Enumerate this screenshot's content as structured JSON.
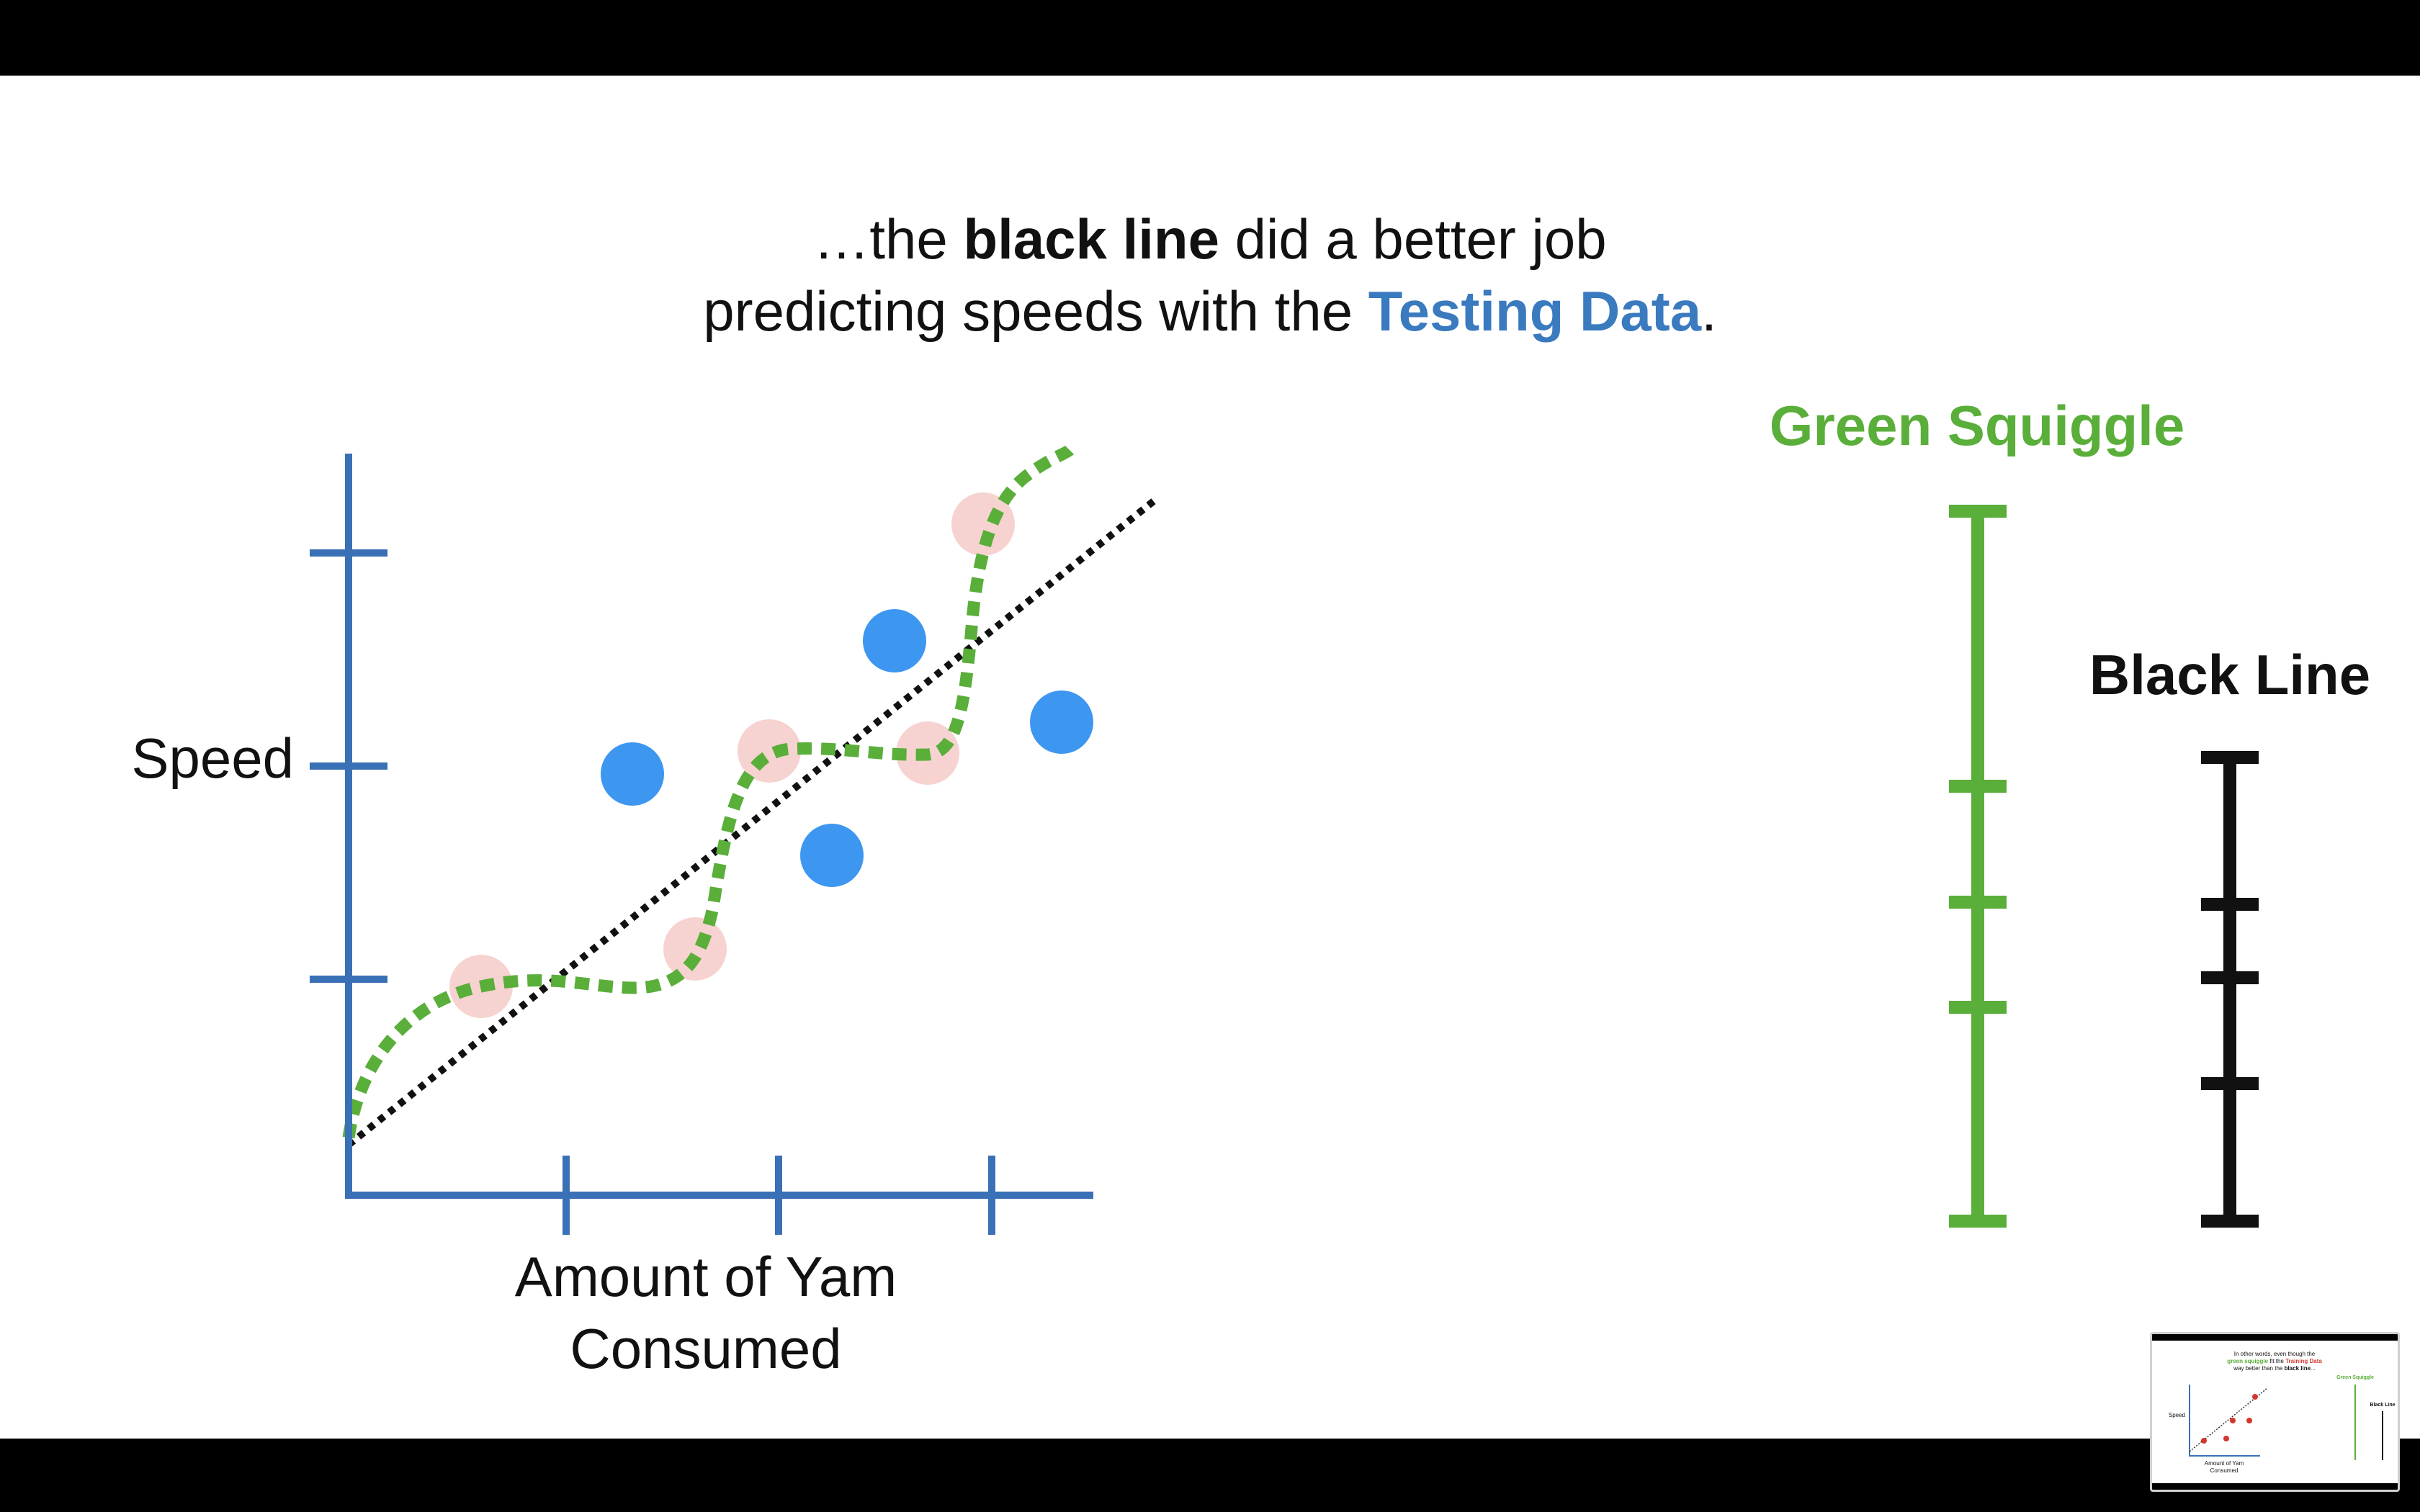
{
  "caption": {
    "line1_pre": "…the ",
    "line1_bold": "black line",
    "line1_post": " did a better job",
    "line2_pre": "predicting speeds with the ",
    "line2_blue": "Testing Data",
    "line2_post": "."
  },
  "graph": {
    "y_label": "Speed",
    "x_label_line1": "Amount of Yam",
    "x_label_line2": "Consumed"
  },
  "comparison": {
    "green_title": "Green Squiggle",
    "black_title": "Black Line"
  },
  "thumbnail": {
    "line1": "In other words, even though the",
    "line2_green": "green squiggle",
    "line2_mid": " fit the ",
    "line2_red": "Training Data",
    "line3_pre": "way better than the ",
    "line3_bold": "black line",
    "line3_post": "...",
    "green_title": "Green Squiggle",
    "black_title": "Black Line",
    "y_label": "Speed",
    "x_label_line1": "Amount of Yam",
    "x_label_line2": "Consumed"
  },
  "colors": {
    "axis": "#3a70b5",
    "testing_point": "#3d96f0",
    "training_point": "#f6d3d0",
    "squiggle": "#5aae3a",
    "line": "#111111",
    "caption_blue": "#3a7abf"
  }
}
